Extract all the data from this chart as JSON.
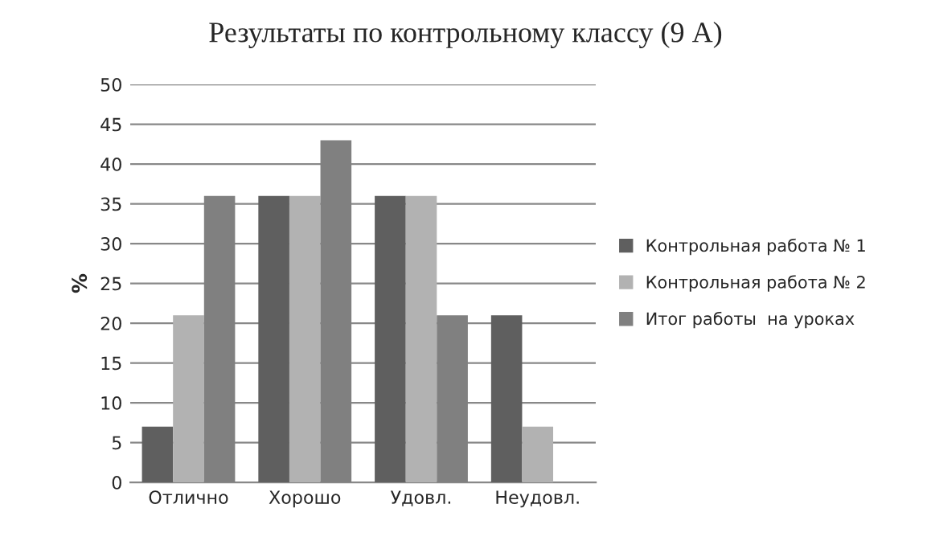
{
  "chart_data": {
    "type": "bar",
    "title": "Результаты по контрольному классу (9 А)",
    "ylabel": "%",
    "categories": [
      "Отлично",
      "Хорошо",
      "Удовл.",
      "Неудовл."
    ],
    "series": [
      {
        "name": "Контрольная работа № 1",
        "color": "#5f5f5f",
        "values": [
          7,
          36,
          36,
          21
        ]
      },
      {
        "name": "Контрольная работа № 2",
        "color": "#b2b2b2",
        "values": [
          21,
          36,
          36,
          7
        ]
      },
      {
        "name": "Итог работы  на уроках",
        "color": "#808080",
        "values": [
          36,
          43,
          21,
          null
        ]
      }
    ],
    "ylim": [
      0,
      50
    ],
    "yticks": [
      0,
      5,
      10,
      15,
      20,
      25,
      30,
      35,
      40,
      45,
      50
    ],
    "grid": "y",
    "legend": "right"
  }
}
